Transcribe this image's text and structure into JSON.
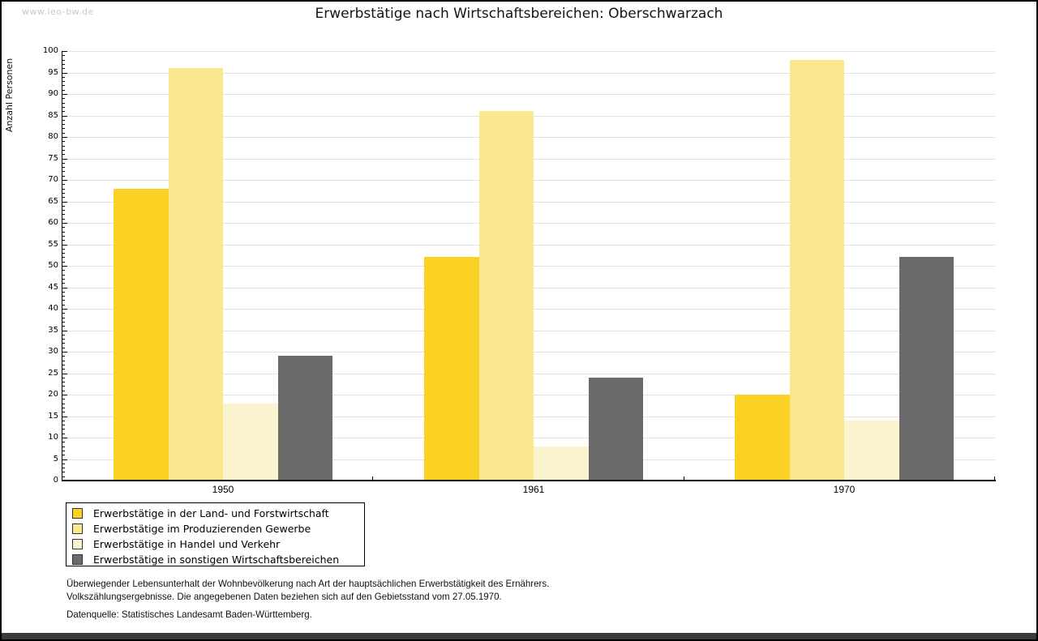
{
  "watermark": "www.leo-bw.de",
  "title": "Erwerbstätige nach Wirtschaftsbereichen: Oberschwarzach",
  "chart_data": {
    "type": "bar",
    "title": "Erwerbstätige nach Wirtschaftsbereichen: Oberschwarzach",
    "xlabel": "",
    "ylabel": "Anzahl Personen",
    "categories": [
      "1950",
      "1961",
      "1970"
    ],
    "series": [
      {
        "name": "Erwerbstätige in der Land- und Forstwirtschaft",
        "color": "#fbd123",
        "values": [
          68,
          52,
          20
        ]
      },
      {
        "name": "Erwerbstätige im Produzierenden Gewerbe",
        "color": "#fae88f",
        "values": [
          96,
          86,
          98
        ]
      },
      {
        "name": "Erwerbstätige in Handel und Verkehr",
        "color": "#fbf3ce",
        "values": [
          18,
          8,
          14
        ]
      },
      {
        "name": "Erwerbstätige in sonstigen Wirtschaftsbereichen",
        "color": "#6a6a6a",
        "values": [
          29,
          24,
          52
        ]
      }
    ],
    "ylim": [
      0,
      100
    ],
    "y_major_step": 5,
    "y_minor_step": 1,
    "grid": true,
    "legend_position": "bottom-left"
  },
  "footer": {
    "line1": "Überwiegender Lebensunterhalt der Wohnbevölkerung nach Art der hauptsächlichen Erwerbstätigkeit des Ernährers.",
    "line2": "Volkszählungsergebnisse. Die angegebenen Daten beziehen sich auf den Gebietsstand vom 27.05.1970.",
    "source": "Datenquelle: Statistisches Landesamt Baden-Württemberg."
  }
}
